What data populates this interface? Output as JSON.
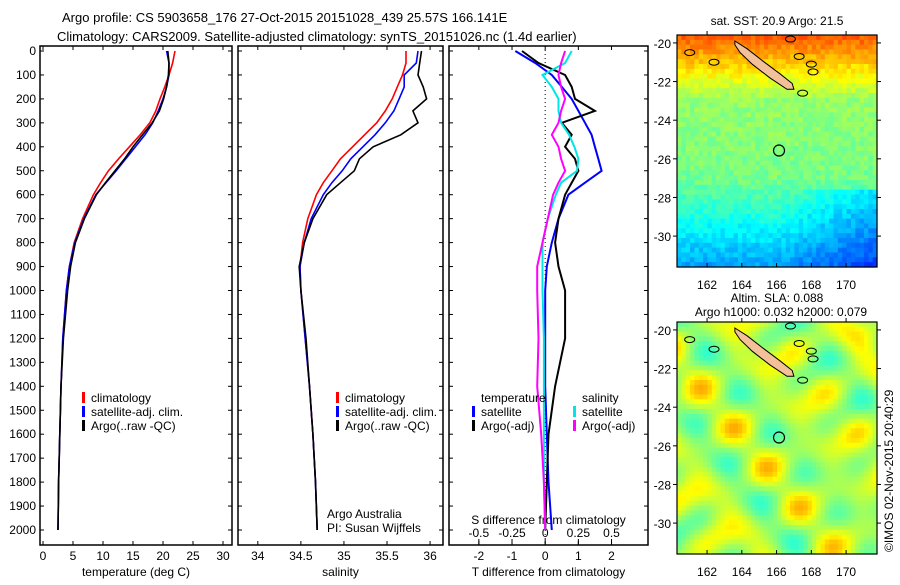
{
  "header": {
    "title_line1": "Argo profile: CS 5903658_176 27-Oct-2015 20151028_439 25.57S 166.141E",
    "title_line2": "Climatology: CARS2009. Satellite-adjusted climatology: synTS_20151026.nc (1.4d earlier)"
  },
  "colors": {
    "climatology": "#ff0000",
    "satellite": "#0000ff",
    "argo": "#000000",
    "sal_satellite": "#00e5e5",
    "sal_argo": "#ff00ff",
    "land": "#f4c09a"
  },
  "chart_data": [
    {
      "type": "line",
      "name": "temperature-profile",
      "xlabel": "temperature (deg C)",
      "xticks": [
        0,
        5,
        10,
        15,
        20,
        25,
        30
      ],
      "xlim": [
        -0.5,
        31.5
      ],
      "ylim": [
        2060,
        -20
      ],
      "yticks": [
        0,
        100,
        200,
        300,
        400,
        500,
        600,
        700,
        800,
        900,
        1000,
        1100,
        1200,
        1300,
        1400,
        1500,
        1600,
        1700,
        1800,
        1900,
        2000
      ],
      "depth": [
        0,
        50,
        100,
        150,
        200,
        250,
        300,
        350,
        400,
        450,
        500,
        550,
        600,
        700,
        800,
        900,
        1000,
        1200,
        1400,
        1600,
        1800,
        2000
      ],
      "legend": [
        "climatology",
        "satellite-adj. clim.",
        "Argo(..raw -QC)"
      ],
      "series": [
        {
          "name": "climatology",
          "color": "#ff0000",
          "values": [
            22.0,
            21.6,
            21.0,
            20.3,
            19.5,
            18.8,
            17.8,
            16.2,
            14.4,
            12.6,
            10.9,
            9.6,
            8.4,
            6.6,
            5.2,
            4.4,
            3.9,
            3.3,
            3.0,
            2.8,
            2.6,
            2.5
          ]
        },
        {
          "name": "satellite-adj. clim.",
          "color": "#0000ff",
          "values": [
            20.6,
            21.0,
            21.0,
            20.6,
            20.0,
            19.2,
            18.3,
            17.0,
            15.4,
            13.8,
            12.2,
            10.5,
            8.8,
            6.8,
            5.3,
            4.4,
            3.9,
            3.3,
            3.0,
            2.8,
            2.6,
            2.5
          ]
        },
        {
          "name": "Argo(..raw -QC)",
          "color": "#000000",
          "values": [
            20.8,
            21.0,
            20.9,
            20.6,
            20.1,
            19.4,
            18.2,
            16.6,
            15.0,
            13.6,
            12.0,
            10.4,
            8.9,
            6.9,
            5.4,
            4.6,
            4.1,
            3.4,
            3.0,
            2.8,
            2.6,
            2.5
          ]
        }
      ]
    },
    {
      "type": "line",
      "name": "salinity-profile",
      "xlabel": "salinity",
      "xticks": [
        34,
        34.5,
        35,
        35.5,
        36
      ],
      "xlim": [
        33.77,
        36.15
      ],
      "ylim": [
        2060,
        -20
      ],
      "depth": [
        0,
        50,
        100,
        150,
        200,
        250,
        300,
        350,
        400,
        450,
        500,
        550,
        600,
        700,
        800,
        900,
        1000,
        1200,
        1400,
        1600,
        1800,
        2000
      ],
      "legend": [
        "climatology",
        "satellite-adj. clim.",
        "Argo(..raw -QC)"
      ],
      "annotation": [
        "Argo Australia",
        "PI: Susan Wijffels"
      ],
      "series": [
        {
          "name": "climatology",
          "color": "#ff0000",
          "values": [
            35.72,
            35.72,
            35.68,
            35.62,
            35.56,
            35.48,
            35.38,
            35.24,
            35.1,
            34.96,
            34.86,
            34.76,
            34.68,
            34.58,
            34.52,
            34.49,
            34.5,
            34.55,
            34.6,
            34.64,
            34.67,
            34.69
          ]
        },
        {
          "name": "satellite-adj. clim.",
          "color": "#0000ff",
          "values": [
            35.86,
            35.84,
            35.7,
            35.7,
            35.64,
            35.58,
            35.48,
            35.36,
            35.22,
            35.08,
            34.98,
            34.86,
            34.76,
            34.62,
            34.54,
            34.49,
            34.5,
            34.55,
            34.6,
            34.64,
            34.67,
            34.69
          ]
        },
        {
          "name": "Argo(..raw -QC)",
          "color": "#000000",
          "values": [
            35.9,
            35.88,
            35.86,
            35.92,
            35.96,
            35.8,
            35.86,
            35.66,
            35.34,
            35.18,
            35.12,
            34.96,
            34.8,
            34.64,
            34.54,
            34.48,
            34.5,
            34.56,
            34.6,
            34.64,
            34.67,
            34.69
          ]
        }
      ]
    },
    {
      "type": "line",
      "name": "difference-profile",
      "xlabel": "T difference from climatology",
      "xticks": [
        -2,
        -1,
        0,
        1,
        2
      ],
      "xlim": [
        -2.9,
        3.1
      ],
      "x2label": "S difference from climatology",
      "x2ticks": [
        -0.5,
        -0.25,
        0,
        0.25,
        0.5
      ],
      "x2tick_labels": [
        "-0.5",
        "-0.25",
        "0",
        "0.25",
        "0.5"
      ],
      "ylim": [
        2060,
        -20
      ],
      "depth": [
        0,
        50,
        100,
        150,
        200,
        250,
        300,
        350,
        400,
        450,
        500,
        550,
        600,
        700,
        800,
        900,
        1000,
        1200,
        1400,
        1600,
        1800,
        2000
      ],
      "legend_temperature": {
        "title": "temperature",
        "items": [
          "satellite",
          "Argo(-adj)"
        ]
      },
      "legend_salinity": {
        "title": "salinity",
        "items": [
          "satellite",
          "Argo(-adj)"
        ]
      },
      "series": [
        {
          "name": "temperature satellite",
          "color": "#0000ff",
          "units": "T",
          "values": [
            -0.9,
            -0.3,
            0.2,
            0.5,
            0.8,
            1.0,
            1.2,
            1.4,
            1.5,
            1.6,
            1.7,
            1.2,
            0.7,
            0.4,
            0.2,
            0.05,
            0.0,
            0.0,
            0.0,
            0.05,
            0.1,
            0.2
          ]
        },
        {
          "name": "temperature Argo(-adj)",
          "color": "#000000",
          "units": "T",
          "values": [
            -0.7,
            -0.2,
            0.6,
            0.8,
            0.9,
            1.5,
            0.5,
            0.8,
            0.6,
            0.9,
            1.0,
            0.8,
            0.6,
            0.4,
            0.3,
            0.4,
            0.6,
            0.6,
            0.3,
            0.1,
            0.05,
            0.0
          ]
        },
        {
          "name": "salinity satellite",
          "color": "#00e5e5",
          "units": "S",
          "values": [
            0.2,
            0.15,
            -0.02,
            0.05,
            0.1,
            0.1,
            0.12,
            0.18,
            0.22,
            0.25,
            0.24,
            0.12,
            0.08,
            0.02,
            -0.02,
            -0.02,
            -0.02,
            -0.01,
            -0.01,
            -0.01,
            -0.01,
            0.0
          ]
        },
        {
          "name": "salinity Argo(-adj)",
          "color": "#ff00ff",
          "units": "S",
          "values": [
            0.15,
            0.12,
            0.1,
            0.12,
            0.15,
            0.12,
            0.1,
            0.05,
            0.1,
            0.12,
            0.15,
            0.1,
            0.06,
            0.02,
            -0.02,
            -0.06,
            -0.06,
            -0.05,
            -0.06,
            -0.03,
            -0.01,
            0.0
          ]
        }
      ]
    },
    {
      "type": "heatmap",
      "name": "sst-map",
      "title": "sat. SST: 20.9 Argo: 21.5",
      "xticks": [
        162,
        164,
        166,
        168,
        170
      ],
      "yticks": [
        -20,
        -22,
        -24,
        -26,
        -28,
        -30
      ],
      "xlim": [
        160.27,
        171.78
      ],
      "ylim": [
        -31.6,
        -19.59
      ],
      "argo_position": {
        "lon": 166.141,
        "lat": -25.57
      }
    },
    {
      "type": "heatmap",
      "name": "sla-map",
      "title_line1": "Altim. SLA: 0.088",
      "title_line2": "Argo h1000: 0.032 h2000: 0.079",
      "xticks": [
        162,
        164,
        166,
        168,
        170
      ],
      "yticks": [
        -20,
        -22,
        -24,
        -26,
        -28,
        -30
      ],
      "xlim": [
        160.27,
        171.78
      ],
      "ylim": [
        -31.6,
        -19.59
      ],
      "argo_position": {
        "lon": 166.141,
        "lat": -25.57
      }
    }
  ],
  "footer": {
    "credit": "©IMOS 02-Nov-2015 20:40:29"
  }
}
